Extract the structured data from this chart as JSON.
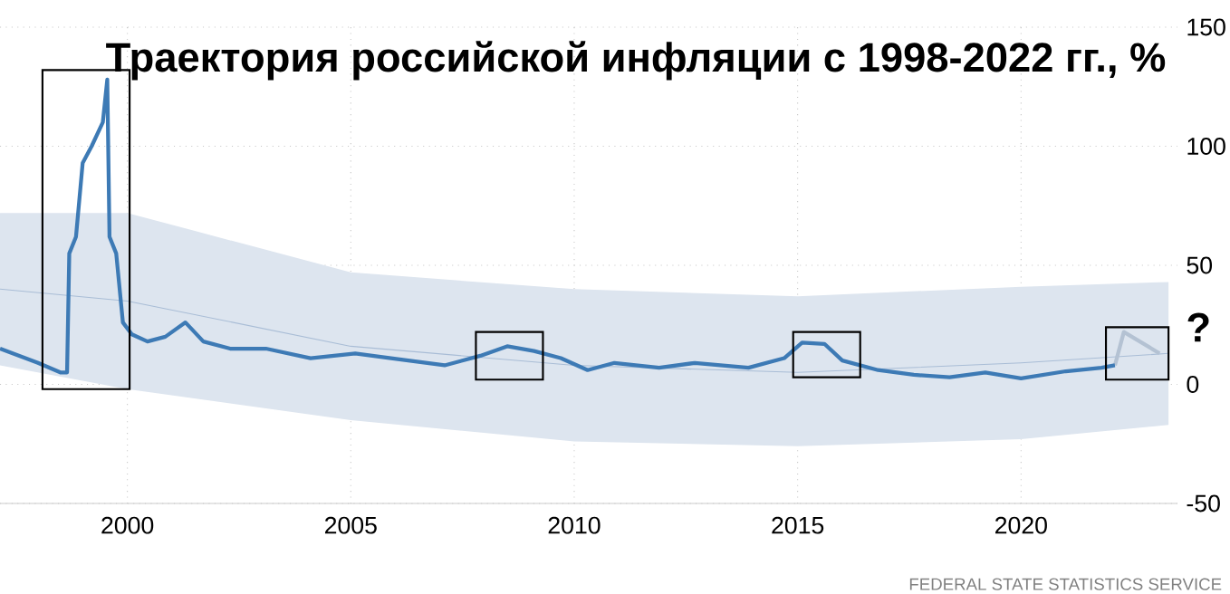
{
  "chart_data": {
    "type": "line",
    "title": "Траектория российской инфляции с 1998-2022 гг., %",
    "xlim": [
      1997.15,
      2023.5
    ],
    "ylim": [
      -50,
      150
    ],
    "xticks": [
      2000,
      2005,
      2010,
      2015,
      2020
    ],
    "yticks": [
      -50,
      0,
      50,
      100,
      150
    ],
    "grid": true,
    "legend": false,
    "marker": "none",
    "line_style": "solid",
    "annotations": [
      "?",
      "FEDERAL STATE STATISTICS SERVICE"
    ],
    "series": [
      {
        "color": "#3d7ab5",
        "x": [
          1997.15,
          1998.0,
          1998.5,
          1998.65,
          1998.7,
          1998.85,
          1999.0,
          1999.2,
          1999.45,
          1999.55,
          1999.6,
          1999.75,
          1999.9,
          2000.1,
          2000.45,
          2000.85,
          2001.3,
          2001.7,
          2002.3,
          2003.1,
          2004.1,
          2005.1,
          2005.9,
          2007.1,
          2007.9,
          2008.5,
          2009.1,
          2009.7,
          2010.3,
          2010.9,
          2011.9,
          2012.7,
          2013.9,
          2014.7,
          2015.1,
          2015.6,
          2016.0,
          2016.8,
          2017.6,
          2018.4,
          2019.2,
          2020.0,
          2021.0,
          2021.8,
          2022.1
        ],
        "values": [
          15,
          9,
          5,
          5,
          55,
          62,
          93,
          100,
          110,
          128,
          62,
          55,
          26,
          21,
          18,
          20,
          26,
          18,
          15,
          15,
          11,
          13,
          11,
          8,
          12,
          16,
          14,
          11,
          6,
          9,
          7,
          9,
          7,
          11,
          17.5,
          17,
          10,
          6,
          4,
          3,
          5,
          2.5,
          5.5,
          7,
          8
        ]
      },
      {
        "color": "#b4c2d3",
        "x": [
          2022.1,
          2022.3,
          2023.1
        ],
        "values": [
          8,
          22,
          13
        ]
      },
      {
        "color": "#a9bdd6",
        "x": [
          1997.15,
          2000.0,
          2005.0,
          2010.0,
          2015.0,
          2020.0,
          2023.3
        ],
        "values": [
          40,
          35,
          16,
          8,
          5,
          9,
          13
        ],
        "lower": [
          8,
          -2,
          -15,
          -24,
          -26,
          -23,
          -17
        ],
        "upper": [
          72,
          72,
          47,
          40,
          37,
          41,
          43
        ]
      }
    ]
  }
}
